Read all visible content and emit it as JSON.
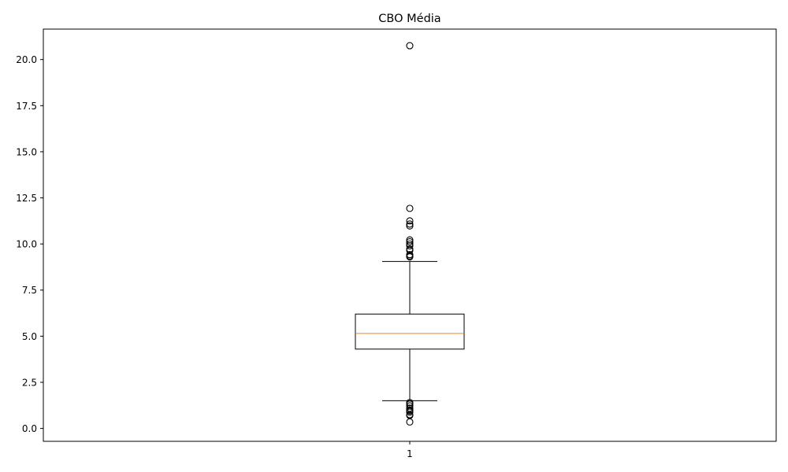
{
  "chart_data": {
    "type": "box",
    "title": "CBO Média",
    "xlabel": "",
    "ylabel": "",
    "categories": [
      "1"
    ],
    "ylim": [
      -0.7,
      21.65
    ],
    "yticks": [
      0.0,
      2.5,
      5.0,
      7.5,
      10.0,
      12.5,
      15.0,
      17.5,
      20.0
    ],
    "ytick_labels": [
      "0.0",
      "2.5",
      "5.0",
      "7.5",
      "10.0",
      "12.5",
      "15.0",
      "17.5",
      "20.0"
    ],
    "grid": false,
    "boxes": [
      {
        "label": "1",
        "whisker_low": 1.5,
        "q1": 4.3,
        "median": 5.15,
        "q3": 6.2,
        "whisker_high": 9.05,
        "outliers_high": [
          20.75,
          11.93,
          11.25,
          11.08,
          10.98,
          10.22,
          10.12,
          10.0,
          9.9,
          9.72,
          9.65,
          9.42,
          9.35,
          9.3
        ],
        "outliers_low": [
          1.4,
          1.32,
          1.22,
          1.1,
          1.0,
          0.95,
          0.88,
          0.75,
          0.7,
          0.35
        ]
      }
    ],
    "colors": {
      "box": "#000000",
      "median": "#ff7f0e",
      "outlier": "#000000"
    }
  }
}
